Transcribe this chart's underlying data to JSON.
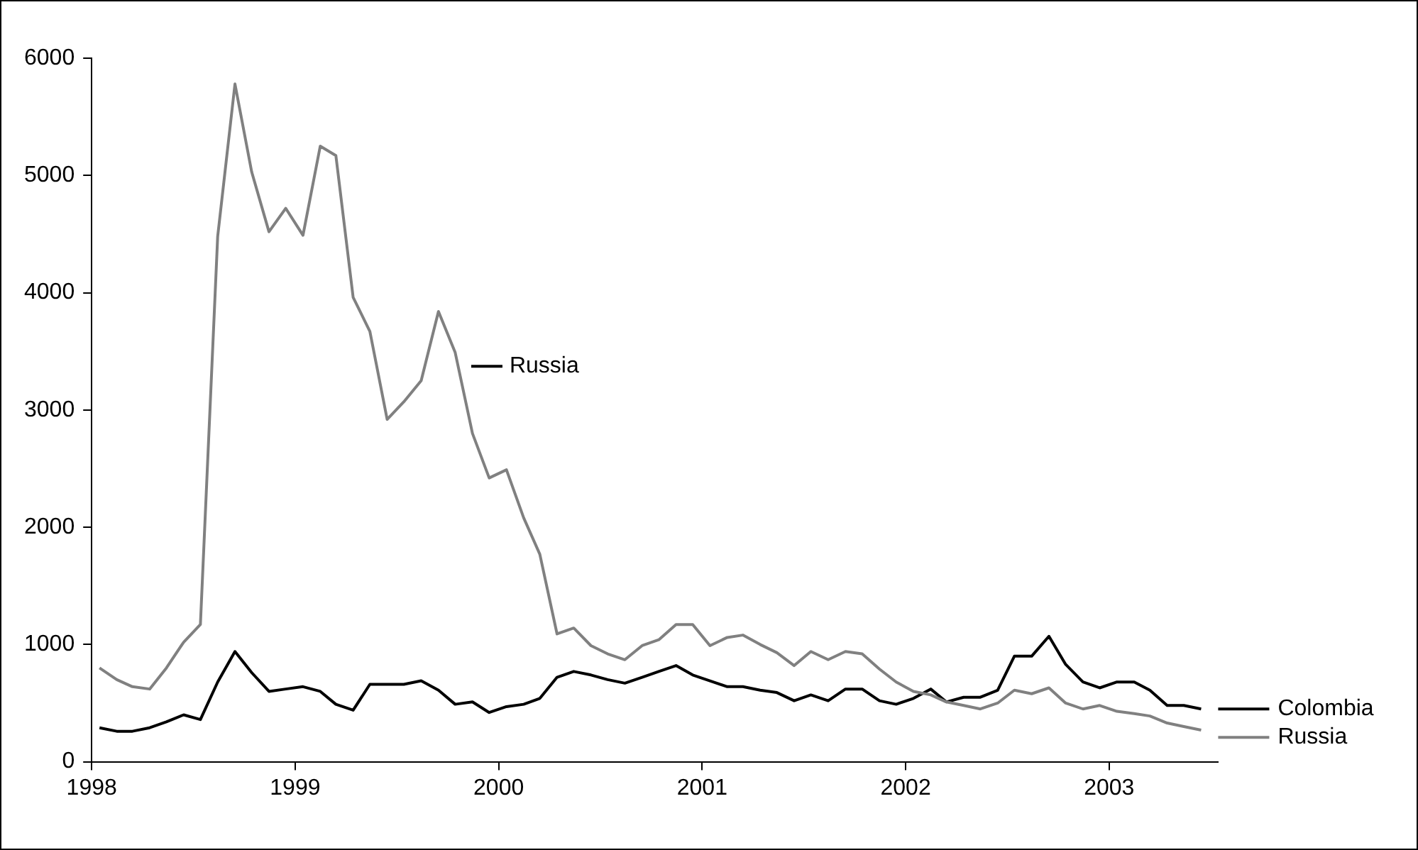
{
  "chart_data": {
    "type": "line",
    "x": [
      "1998-01-15",
      "1998-02-15",
      "1998-03-15",
      "1998-04-15",
      "1998-05-15",
      "1998-06-15",
      "1998-07-15",
      "1998-08-15",
      "1998-09-15",
      "1998-10-15",
      "1998-11-15",
      "1998-12-15",
      "1999-01-15",
      "1999-02-15",
      "1999-03-15",
      "1999-04-15",
      "1999-05-15",
      "1999-06-15",
      "1999-07-15",
      "1999-08-15",
      "1999-09-15",
      "1999-10-15",
      "1999-11-15",
      "1999-12-15",
      "2000-01-15",
      "2000-02-15",
      "2000-03-15",
      "2000-04-15",
      "2000-05-15",
      "2000-06-15",
      "2000-07-15",
      "2000-08-15",
      "2000-09-15",
      "2000-10-15",
      "2000-11-15",
      "2000-12-15",
      "2001-01-15",
      "2001-02-15",
      "2001-03-15",
      "2001-04-15",
      "2001-05-15",
      "2001-06-15",
      "2001-07-15",
      "2001-08-15",
      "2001-09-15",
      "2001-10-15",
      "2001-11-15",
      "2001-12-15",
      "2002-01-15",
      "2002-02-15",
      "2002-03-15",
      "2002-04-15",
      "2002-05-15",
      "2002-06-15",
      "2002-07-15",
      "2002-08-15",
      "2002-09-15",
      "2002-10-15",
      "2002-11-15",
      "2002-12-15",
      "2003-01-15",
      "2003-02-15",
      "2003-03-15",
      "2003-04-15",
      "2003-05-15",
      "2003-06-15"
    ],
    "series": [
      {
        "name": "Russia",
        "color": "#808080",
        "values": [
          800,
          700,
          640,
          620,
          800,
          1020,
          1170,
          4480,
          5780,
          5030,
          4520,
          4720,
          4490,
          5250,
          5170,
          3960,
          3670,
          2920,
          3070,
          3250,
          3840,
          3490,
          2800,
          2420,
          2490,
          2080,
          1770,
          1090,
          1140,
          990,
          920,
          870,
          990,
          1040,
          1170,
          1170,
          990,
          1060,
          1080,
          1000,
          930,
          820,
          940,
          870,
          940,
          920,
          790,
          680,
          600,
          570,
          510,
          480,
          450,
          500,
          610,
          580,
          630,
          500,
          450,
          480,
          430,
          410,
          390,
          330,
          300,
          270
        ]
      },
      {
        "name": "Colombia",
        "color": "#000000",
        "values": [
          290,
          260,
          260,
          290,
          340,
          400,
          360,
          680,
          940,
          760,
          600,
          620,
          640,
          600,
          490,
          440,
          660,
          660,
          660,
          690,
          610,
          490,
          510,
          420,
          470,
          490,
          540,
          720,
          770,
          740,
          700,
          670,
          720,
          770,
          820,
          740,
          690,
          640,
          640,
          610,
          590,
          520,
          570,
          520,
          620,
          620,
          520,
          490,
          540,
          620,
          510,
          550,
          550,
          610,
          900,
          900,
          1070,
          830,
          680,
          630,
          680,
          680,
          610,
          480,
          480,
          450
        ]
      }
    ],
    "xlim": [
      "1998",
      "2003-07-15"
    ],
    "xticks": [
      "1998",
      "1999",
      "2000",
      "2001",
      "2002",
      "2003"
    ],
    "ylim": [
      0,
      6000
    ],
    "yticks": [
      0,
      1000,
      2000,
      3000,
      4000,
      5000,
      6000
    ],
    "grid": false,
    "marker": "none",
    "legend": "right",
    "annotations": [
      "Russia"
    ]
  }
}
